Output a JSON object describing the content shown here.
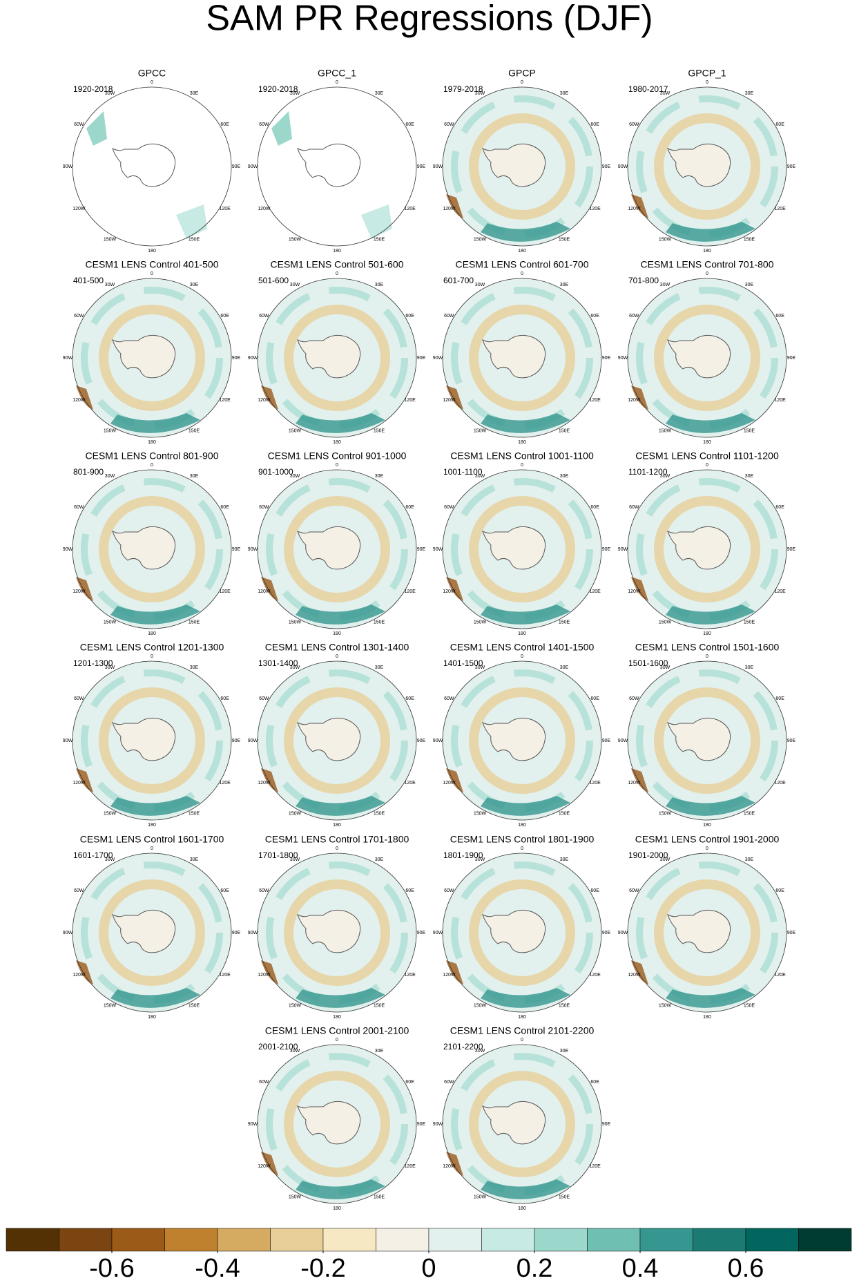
{
  "title": "SAM PR Regressions (DJF)",
  "lon_labels": [
    "0",
    "30E",
    "60E",
    "90E",
    "120E",
    "150E",
    "180",
    "150W",
    "120W",
    "90W",
    "60W",
    "30W"
  ],
  "panels": [
    {
      "title": "GPCC",
      "period": "1920-2018"
    },
    {
      "title": "GPCC_1",
      "period": "1920-2018"
    },
    {
      "title": "GPCP",
      "period": "1979-2018"
    },
    {
      "title": "GPCP_1",
      "period": "1980-2017"
    },
    {
      "title": "CESM1 LENS Control 401-500",
      "period": "401-500"
    },
    {
      "title": "CESM1 LENS Control 501-600",
      "period": "501-600"
    },
    {
      "title": "CESM1 LENS Control 601-700",
      "period": "601-700"
    },
    {
      "title": "CESM1 LENS Control 701-800",
      "period": "701-800"
    },
    {
      "title": "CESM1 LENS Control 801-900",
      "period": "801-900"
    },
    {
      "title": "CESM1 LENS Control 901-1000",
      "period": "901-1000"
    },
    {
      "title": "CESM1 LENS Control 1001-1100",
      "period": "1001-1100"
    },
    {
      "title": "CESM1 LENS Control 1101-1200",
      "period": "1101-1200"
    },
    {
      "title": "CESM1 LENS Control 1201-1300",
      "period": "1201-1300"
    },
    {
      "title": "CESM1 LENS Control 1301-1400",
      "period": "1301-1400"
    },
    {
      "title": "CESM1 LENS Control 1401-1500",
      "period": "1401-1500"
    },
    {
      "title": "CESM1 LENS Control 1501-1600",
      "period": "1501-1600"
    },
    {
      "title": "CESM1 LENS Control 1601-1700",
      "period": "1601-1700"
    },
    {
      "title": "CESM1 LENS Control 1701-1800",
      "period": "1701-1800"
    },
    {
      "title": "CESM1 LENS Control 1801-1900",
      "period": "1801-1900"
    },
    {
      "title": "CESM1 LENS Control 1901-2000",
      "period": "1901-2000"
    },
    {
      "title": "CESM1 LENS Control 2001-2100",
      "period": "2001-2100"
    },
    {
      "title": "CESM1 LENS Control 2101-2200",
      "period": "2101-2200"
    }
  ],
  "colorbar": {
    "lim": [
      -0.8,
      0.8
    ],
    "ticks": [
      -0.6,
      -0.4,
      -0.2,
      0,
      0.2,
      0.4,
      0.6
    ],
    "colors": [
      "#543005",
      "#7a4510",
      "#9c5a19",
      "#bf812d",
      "#d5ab62",
      "#e8cf98",
      "#f6e8c3",
      "#f5f0e6",
      "#e2f0ee",
      "#c7eae5",
      "#9bd8cb",
      "#6fbfb2",
      "#35978f",
      "#1b7a72",
      "#01665e",
      "#003c30"
    ]
  }
}
